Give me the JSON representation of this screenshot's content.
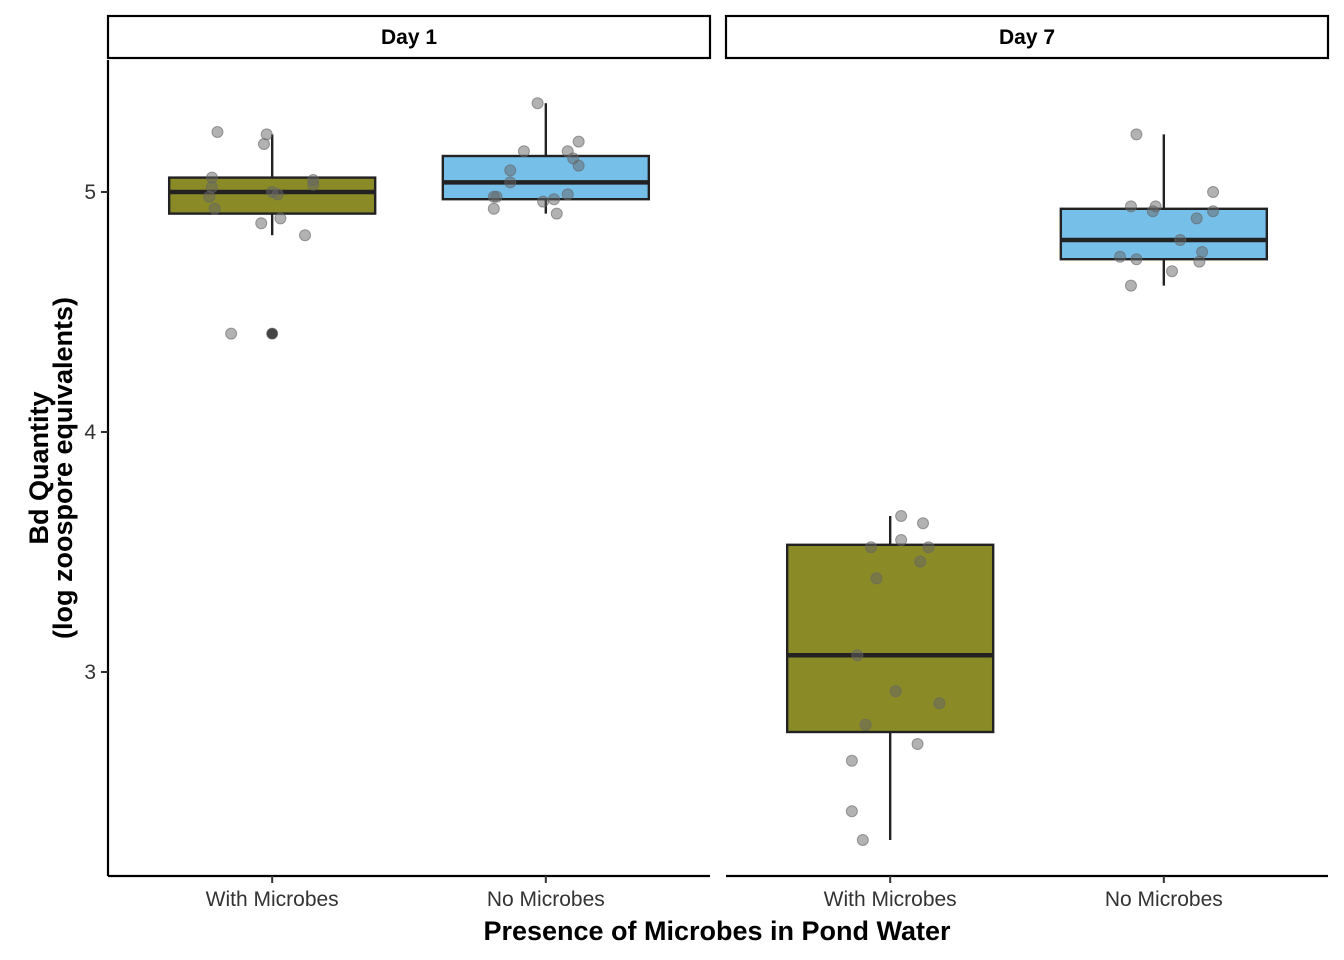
{
  "chart_data": {
    "type": "boxplot",
    "xlabel": "Presence of Microbes in Pond Water",
    "ylabel_line1": "Bd Quantity",
    "ylabel_line2": "(log zoospore equivalents)",
    "ylim": [
      2.15,
      5.55
    ],
    "yticks": [
      3,
      4,
      5
    ],
    "categories": [
      "With Microbes",
      "No Microbes"
    ],
    "colors": {
      "With Microbes": "#8a8b27",
      "No Microbes": "#76bfe9"
    },
    "point_color": "#666666",
    "panels": [
      {
        "label": "Day 1",
        "groups": [
          {
            "category": "With Microbes",
            "q1": 4.91,
            "median": 5.0,
            "q3": 5.06,
            "whisker_low": 4.82,
            "whisker_high": 5.24,
            "outliers": [
              4.41
            ],
            "points": [
              {
                "x": 0.8,
                "y": 5.25
              },
              {
                "x": 0.98,
                "y": 5.24
              },
              {
                "x": 0.97,
                "y": 5.2
              },
              {
                "x": 0.78,
                "y": 5.06
              },
              {
                "x": 1.15,
                "y": 5.05
              },
              {
                "x": 1.15,
                "y": 5.03
              },
              {
                "x": 0.78,
                "y": 5.02
              },
              {
                "x": 1.0,
                "y": 5.0
              },
              {
                "x": 1.02,
                "y": 4.99
              },
              {
                "x": 0.77,
                "y": 4.98
              },
              {
                "x": 0.79,
                "y": 4.93
              },
              {
                "x": 1.03,
                "y": 4.89
              },
              {
                "x": 0.96,
                "y": 4.87
              },
              {
                "x": 1.12,
                "y": 4.82
              },
              {
                "x": 0.85,
                "y": 4.41
              },
              {
                "x": 1.0,
                "y": 4.41
              }
            ]
          },
          {
            "category": "No Microbes",
            "q1": 4.97,
            "median": 5.04,
            "q3": 5.15,
            "whisker_low": 4.91,
            "whisker_high": 5.37,
            "outliers": [],
            "points": [
              {
                "x": 1.97,
                "y": 5.37
              },
              {
                "x": 2.12,
                "y": 5.21
              },
              {
                "x": 1.92,
                "y": 5.17
              },
              {
                "x": 2.08,
                "y": 5.17
              },
              {
                "x": 2.1,
                "y": 5.14
              },
              {
                "x": 2.12,
                "y": 5.11
              },
              {
                "x": 1.87,
                "y": 5.09
              },
              {
                "x": 1.87,
                "y": 5.04
              },
              {
                "x": 2.08,
                "y": 4.99
              },
              {
                "x": 1.81,
                "y": 4.98
              },
              {
                "x": 1.82,
                "y": 4.98
              },
              {
                "x": 2.03,
                "y": 4.97
              },
              {
                "x": 1.99,
                "y": 4.96
              },
              {
                "x": 1.81,
                "y": 4.93
              },
              {
                "x": 2.04,
                "y": 4.91
              }
            ]
          }
        ]
      },
      {
        "label": "Day 7",
        "groups": [
          {
            "category": "With Microbes",
            "q1": 2.75,
            "median": 3.07,
            "q3": 3.53,
            "whisker_low": 2.3,
            "whisker_high": 3.65,
            "outliers": [],
            "points": [
              {
                "x": 1.04,
                "y": 3.65
              },
              {
                "x": 1.12,
                "y": 3.62
              },
              {
                "x": 1.04,
                "y": 3.55
              },
              {
                "x": 0.93,
                "y": 3.52
              },
              {
                "x": 1.14,
                "y": 3.52
              },
              {
                "x": 1.11,
                "y": 3.46
              },
              {
                "x": 0.95,
                "y": 3.39
              },
              {
                "x": 0.88,
                "y": 3.07
              },
              {
                "x": 1.02,
                "y": 2.92
              },
              {
                "x": 1.18,
                "y": 2.87
              },
              {
                "x": 0.91,
                "y": 2.78
              },
              {
                "x": 1.1,
                "y": 2.7
              },
              {
                "x": 0.86,
                "y": 2.63
              },
              {
                "x": 0.86,
                "y": 2.42
              },
              {
                "x": 0.9,
                "y": 2.3
              }
            ]
          },
          {
            "category": "No Microbes",
            "q1": 4.72,
            "median": 4.8,
            "q3": 4.93,
            "whisker_low": 4.61,
            "whisker_high": 5.24,
            "outliers": [],
            "points": [
              {
                "x": 1.9,
                "y": 5.24
              },
              {
                "x": 2.18,
                "y": 5.0
              },
              {
                "x": 1.88,
                "y": 4.94
              },
              {
                "x": 1.97,
                "y": 4.94
              },
              {
                "x": 1.96,
                "y": 4.92
              },
              {
                "x": 2.18,
                "y": 4.92
              },
              {
                "x": 2.12,
                "y": 4.89
              },
              {
                "x": 2.06,
                "y": 4.8
              },
              {
                "x": 2.14,
                "y": 4.75
              },
              {
                "x": 1.84,
                "y": 4.73
              },
              {
                "x": 1.9,
                "y": 4.72
              },
              {
                "x": 2.13,
                "y": 4.71
              },
              {
                "x": 2.03,
                "y": 4.67
              },
              {
                "x": 1.88,
                "y": 4.61
              }
            ]
          }
        ]
      }
    ]
  }
}
